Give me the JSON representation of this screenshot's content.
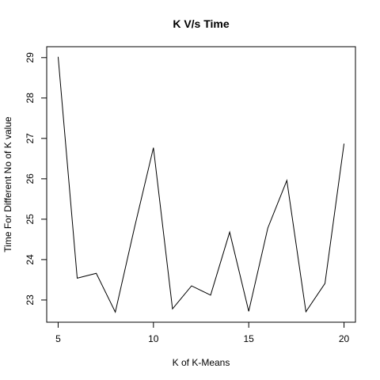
{
  "chart_data": {
    "type": "line",
    "title": "K V/s Time",
    "xlabel": "K of K-Means",
    "ylabel": "Time For Different No of K value",
    "x": [
      5,
      6,
      7,
      8,
      9,
      10,
      11,
      12,
      13,
      14,
      15,
      16,
      17,
      18,
      19,
      20
    ],
    "series": [
      {
        "values": [
          29.02,
          23.54,
          23.66,
          22.7,
          24.78,
          26.77,
          22.78,
          23.35,
          23.12,
          24.68,
          22.72,
          24.78,
          25.96,
          22.71,
          23.41,
          26.87
        ]
      }
    ],
    "xlim": [
      4.4,
      20.6
    ],
    "ylim": [
      22.45,
      29.27
    ],
    "xticks": [
      5,
      10,
      15,
      20
    ],
    "yticks": [
      23,
      24,
      25,
      26,
      27,
      28,
      29
    ],
    "grid": false,
    "line_color": "#000000"
  }
}
